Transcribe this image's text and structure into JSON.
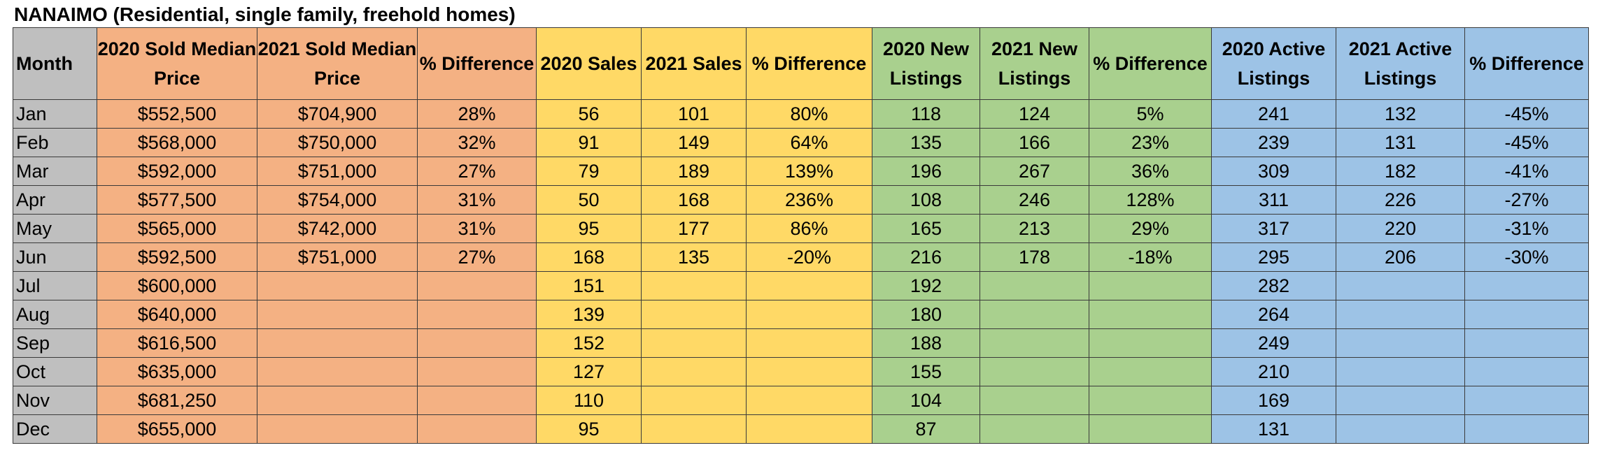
{
  "title": "NANAIMO (Residential, single family, freehold homes)",
  "colors": {
    "month": "#bfbfbf",
    "price": "#f4b183",
    "sales": "#ffd966",
    "new_listings": "#a9d08e",
    "active_listings": "#9dc3e6"
  },
  "headers": {
    "month": "Month",
    "sold_2020": "2020 Sold Median Price",
    "sold_2021": "2021 Sold Median Price",
    "sold_diff": "% Difference",
    "sales_2020": "2020 Sales",
    "sales_2021": "2021 Sales",
    "sales_diff": "% Difference",
    "new_2020": "2020 New Listings",
    "new_2021": "2021 New Listings",
    "new_diff": "% Difference",
    "active_2020": "2020 Active Listings",
    "active_2021": "2021 Active Listings",
    "active_diff": "% Difference"
  },
  "rows": [
    [
      "Jan",
      "$552,500",
      "$704,900",
      "28%",
      "56",
      "101",
      "80%",
      "118",
      "124",
      "5%",
      "241",
      "132",
      "-45%"
    ],
    [
      "Feb",
      "$568,000",
      "$750,000",
      "32%",
      "91",
      "149",
      "64%",
      "135",
      "166",
      "23%",
      "239",
      "131",
      "-45%"
    ],
    [
      "Mar",
      "$592,000",
      "$751,000",
      "27%",
      "79",
      "189",
      "139%",
      "196",
      "267",
      "36%",
      "309",
      "182",
      "-41%"
    ],
    [
      "Apr",
      "$577,500",
      "$754,000",
      "31%",
      "50",
      "168",
      "236%",
      "108",
      "246",
      "128%",
      "311",
      "226",
      "-27%"
    ],
    [
      "May",
      "$565,000",
      "$742,000",
      "31%",
      "95",
      "177",
      "86%",
      "165",
      "213",
      "29%",
      "317",
      "220",
      "-31%"
    ],
    [
      "Jun",
      "$592,500",
      "$751,000",
      "27%",
      "168",
      "135",
      "-20%",
      "216",
      "178",
      "-18%",
      "295",
      "206",
      "-30%"
    ],
    [
      "Jul",
      "$600,000",
      "",
      "",
      "151",
      "",
      "",
      "192",
      "",
      "",
      "282",
      "",
      ""
    ],
    [
      "Aug",
      "$640,000",
      "",
      "",
      "139",
      "",
      "",
      "180",
      "",
      "",
      "264",
      "",
      ""
    ],
    [
      "Sep",
      "$616,500",
      "",
      "",
      "152",
      "",
      "",
      "188",
      "",
      "",
      "249",
      "",
      ""
    ],
    [
      "Oct",
      "$635,000",
      "",
      "",
      "127",
      "",
      "",
      "155",
      "",
      "",
      "210",
      "",
      ""
    ],
    [
      "Nov",
      "$681,250",
      "",
      "",
      "110",
      "",
      "",
      "104",
      "",
      "",
      "169",
      "",
      ""
    ],
    [
      "Dec",
      "$655,000",
      "",
      "",
      "95",
      "",
      "",
      "87",
      "",
      "",
      "131",
      "",
      ""
    ]
  ]
}
